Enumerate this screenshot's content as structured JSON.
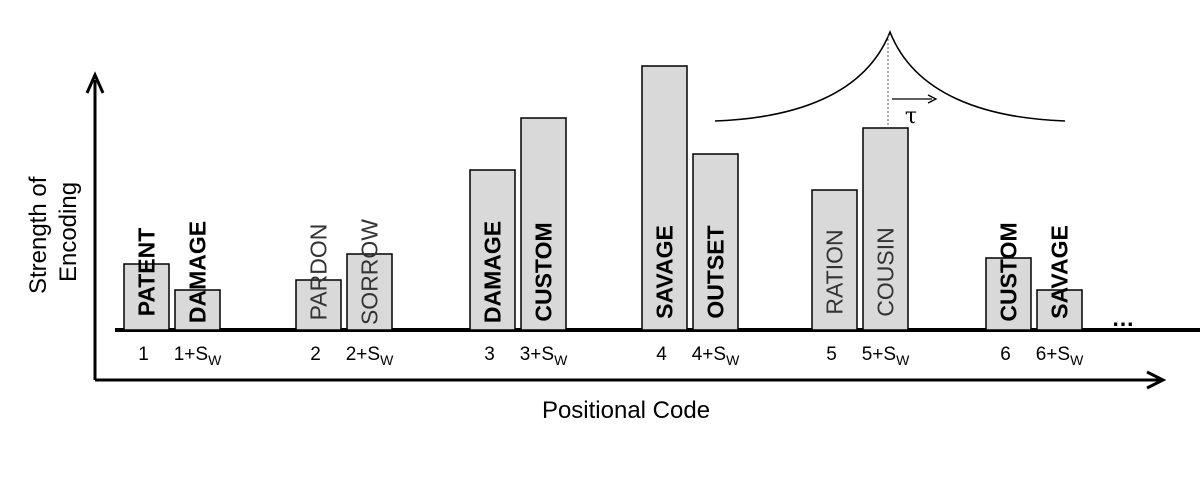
{
  "chart_data": {
    "type": "bar",
    "xlabel": "Positional Code",
    "ylabel": "Strength of Encoding",
    "positions": [
      {
        "label": "1",
        "sw_label": "1+S",
        "sw_sub": "W",
        "bars": [
          {
            "word": "PATENT",
            "strength": 0.33,
            "bold": true
          },
          {
            "word": "DAMAGE",
            "strength": 0.2,
            "bold": true
          }
        ]
      },
      {
        "label": "2",
        "sw_label": "2+S",
        "sw_sub": "W",
        "bars": [
          {
            "word": "PARDON",
            "strength": 0.25,
            "bold": false
          },
          {
            "word": "SORROW",
            "strength": 0.38,
            "bold": false
          }
        ]
      },
      {
        "label": "3",
        "sw_label": "3+S",
        "sw_sub": "W",
        "bars": [
          {
            "word": "DAMAGE",
            "strength": 0.8,
            "bold": true
          },
          {
            "word": "CUSTOM",
            "strength": 1.06,
            "bold": true
          }
        ]
      },
      {
        "label": "4",
        "sw_label": "4+S",
        "sw_sub": "W",
        "bars": [
          {
            "word": "SAVAGE",
            "strength": 1.32,
            "bold": true
          },
          {
            "word": "OUTSET",
            "strength": 0.88,
            "bold": true
          }
        ]
      },
      {
        "label": "5",
        "sw_label": "5+S",
        "sw_sub": "W",
        "bars": [
          {
            "word": "RATION",
            "strength": 0.7,
            "bold": false
          },
          {
            "word": "COUSIN",
            "strength": 1.01,
            "bold": false
          }
        ]
      },
      {
        "label": "6",
        "sw_label": "6+S",
        "sw_sub": "W",
        "bars": [
          {
            "word": "CUSTOM",
            "strength": 0.36,
            "bold": true
          },
          {
            "word": "SAVAGE",
            "strength": 0.2,
            "bold": true
          }
        ]
      }
    ],
    "ellipsis": "…",
    "kernel_symbol": "τ",
    "colors": {
      "bar_fill": "#d9d9d9",
      "bar_stroke": "#000000",
      "regular_text": "#333333"
    }
  }
}
